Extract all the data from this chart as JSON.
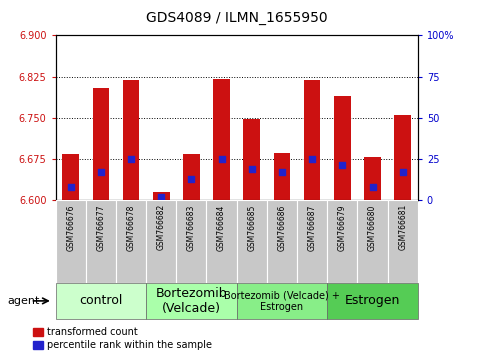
{
  "title": "GDS4089 / ILMN_1655950",
  "samples": [
    "GSM766676",
    "GSM766677",
    "GSM766678",
    "GSM766682",
    "GSM766683",
    "GSM766684",
    "GSM766685",
    "GSM766686",
    "GSM766687",
    "GSM766679",
    "GSM766680",
    "GSM766681"
  ],
  "bar_tops": [
    6.683,
    6.805,
    6.818,
    6.615,
    6.683,
    6.82,
    6.748,
    6.685,
    6.818,
    6.79,
    6.678,
    6.755
  ],
  "blue_pct": [
    8,
    17,
    25,
    2,
    13,
    25,
    19,
    17,
    25,
    21,
    8,
    17
  ],
  "bar_base": 6.6,
  "ylim_left": [
    6.6,
    6.9
  ],
  "ylim_right": [
    0,
    100
  ],
  "yticks_left": [
    6.6,
    6.675,
    6.75,
    6.825,
    6.9
  ],
  "yticks_right": [
    0,
    25,
    50,
    75,
    100
  ],
  "groups": [
    {
      "label": "control",
      "start": 0,
      "end": 3,
      "color": "#ccffcc",
      "fontsize": 9
    },
    {
      "label": "Bortezomib\n(Velcade)",
      "start": 3,
      "end": 6,
      "color": "#aaffaa",
      "fontsize": 9
    },
    {
      "label": "Bortezomib (Velcade) +\nEstrogen",
      "start": 6,
      "end": 9,
      "color": "#88ee88",
      "fontsize": 7
    },
    {
      "label": "Estrogen",
      "start": 9,
      "end": 12,
      "color": "#55cc55",
      "fontsize": 9
    }
  ],
  "bar_color": "#cc1111",
  "blue_color": "#2222cc",
  "bar_width": 0.55,
  "agent_label": "agent",
  "legend_labels": [
    "transformed count",
    "percentile rank within the sample"
  ],
  "tick_color_left": "#cc1111",
  "tick_color_right": "#0000cc",
  "title_fontsize": 10,
  "sample_fontsize": 5.5,
  "group_label_fontsize": 8.5
}
